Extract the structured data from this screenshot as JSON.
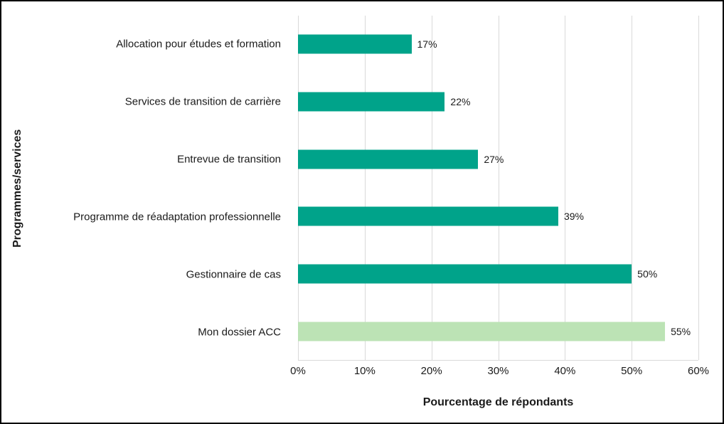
{
  "chart_data": {
    "type": "bar",
    "orientation": "horizontal",
    "title": "",
    "xlabel": "Pourcentage de répondants",
    "ylabel": "Programmes/services",
    "xlim": [
      0,
      60
    ],
    "xticks": [
      0,
      10,
      20,
      30,
      40,
      50,
      60
    ],
    "xtick_labels": [
      "0%",
      "10%",
      "20%",
      "30%",
      "40%",
      "50%",
      "60%"
    ],
    "grid": "vertical",
    "legend": "none",
    "categories": [
      "Allocation pour études et formation",
      "Services de transition de carrière",
      "Entrevue de transition",
      "Programme de réadaptation professionnelle",
      "Gestionnaire de cas",
      "Mon dossier ACC"
    ],
    "values": [
      17,
      22,
      27,
      39,
      50,
      55
    ],
    "data_labels": [
      "17%",
      "22%",
      "27%",
      "39%",
      "50%",
      "55%"
    ],
    "bar_color": "#00a38a",
    "highlight_index": 5,
    "highlight_color": "#bce3b5",
    "gridline_color": "#d9d9d9"
  }
}
